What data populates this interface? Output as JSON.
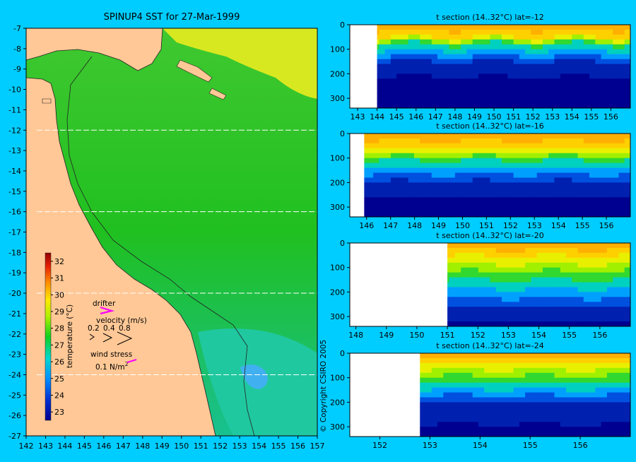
{
  "page": {
    "background": "#00cdff",
    "land_color": "#ffc896",
    "copyright": "© Copyright CSIRO 2005"
  },
  "chart_data": [
    {
      "type": "heatmap",
      "id": "sst-map",
      "title": "SPINUP4 SST for 27-Mar-1999",
      "xlabel": "",
      "ylabel": "",
      "xlim": [
        142,
        157
      ],
      "ylim": [
        -27,
        -7
      ],
      "x_ticks": [
        142,
        143,
        144,
        145,
        146,
        147,
        148,
        149,
        150,
        151,
        152,
        153,
        154,
        155,
        156,
        157
      ],
      "y_ticks": [
        -7,
        -8,
        -9,
        -10,
        -11,
        -12,
        -13,
        -14,
        -15,
        -16,
        -17,
        -18,
        -19,
        -20,
        -21,
        -22,
        -23,
        -24,
        -25,
        -26,
        -27
      ],
      "section_latitudes": [
        -12,
        -16,
        -20,
        -24
      ],
      "colorbar": {
        "label": "temperature (°C)",
        "range": [
          22.5,
          32.5
        ],
        "ticks": [
          23,
          24,
          25,
          26,
          27,
          28,
          29,
          30,
          31,
          32
        ]
      },
      "legend": {
        "drifter_label": "drifter",
        "velocity_label": "velocity (m/s)",
        "velocity_values": [
          "0.2",
          "0.4",
          "0.8"
        ],
        "wind_label": "wind stress",
        "wind_value": "0.1 N/m",
        "wind_exponent": "2"
      }
    },
    {
      "type": "heatmap",
      "id": "section-12",
      "title": "t section (14..32°C) lat=-12",
      "xlim": [
        142.6,
        157
      ],
      "ylim": [
        340,
        0
      ],
      "x_ticks": [
        143,
        144,
        145,
        146,
        147,
        148,
        149,
        150,
        151,
        152,
        153,
        154,
        155,
        156
      ],
      "y_ticks": [
        0,
        100,
        200,
        300
      ],
      "land_until_lon": 144.0,
      "therm_depth": [
        50,
        80,
        150,
        215
      ],
      "wave": 12
    },
    {
      "type": "heatmap",
      "id": "section-16",
      "title": "t section (14..32°C) lat=-16",
      "xlim": [
        145.3,
        157
      ],
      "ylim": [
        340,
        0
      ],
      "x_ticks": [
        146,
        147,
        148,
        149,
        150,
        151,
        152,
        153,
        154,
        155,
        156
      ],
      "y_ticks": [
        0,
        100,
        200,
        300
      ],
      "land_until_lon": 145.9,
      "therm_depth": [
        60,
        110,
        195,
        260
      ],
      "wave": 6
    },
    {
      "type": "heatmap",
      "id": "section-20",
      "title": "t section (14..32°C) lat=-20",
      "xlim": [
        147.8,
        157
      ],
      "ylim": [
        340,
        0
      ],
      "x_ticks": [
        148,
        149,
        150,
        151,
        152,
        153,
        154,
        155,
        156
      ],
      "y_ticks": [
        0,
        100,
        200,
        300
      ],
      "land_until_lon": 151.0,
      "therm_depth": [
        55,
        150,
        260,
        320
      ],
      "wave": 10
    },
    {
      "type": "heatmap",
      "id": "section-24",
      "title": "t section (14..32°C) lat=-24",
      "xlim": [
        151.4,
        157
      ],
      "ylim": [
        340,
        0
      ],
      "x_ticks": [
        152,
        153,
        154,
        155,
        156
      ],
      "y_ticks": [
        0,
        100,
        200,
        300
      ],
      "land_until_lon": 152.8,
      "therm_depth": [
        40,
        120,
        200,
        290
      ],
      "wave": 8
    }
  ]
}
